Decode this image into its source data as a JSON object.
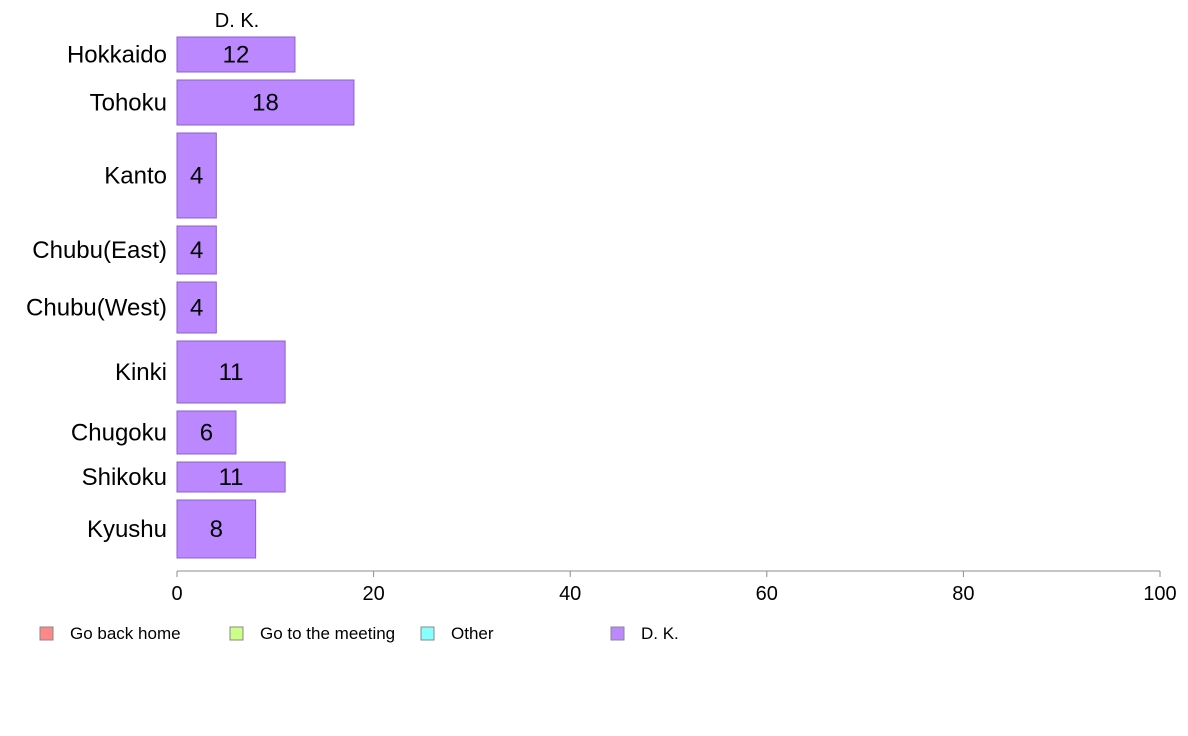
{
  "chart_data": {
    "type": "bar",
    "orientation": "horizontal",
    "panel_title": "D. K.",
    "categories": [
      "Hokkaido",
      "Tohoku",
      "Kanto",
      "Chubu(East)",
      "Chubu(West)",
      "Kinki",
      "Chugoku",
      "Shikoku",
      "Kyushu"
    ],
    "series": [
      {
        "name": "D. K.",
        "values": [
          12,
          18,
          4,
          4,
          4,
          11,
          6,
          11,
          8
        ],
        "color": "#bb88ff"
      }
    ],
    "legend": [
      {
        "label": "Go back home",
        "color": "#ff8888"
      },
      {
        "label": "Go to the meeting",
        "color": "#ccff88"
      },
      {
        "label": "Other",
        "color": "#88ffff"
      },
      {
        "label": "D. K.",
        "color": "#bb88ff"
      }
    ],
    "legend_position": "bottom",
    "xlim": [
      0,
      100
    ],
    "xticks": [
      0,
      20,
      40,
      60,
      80,
      100
    ],
    "xlabel": "",
    "ylabel": "",
    "grid": false
  }
}
